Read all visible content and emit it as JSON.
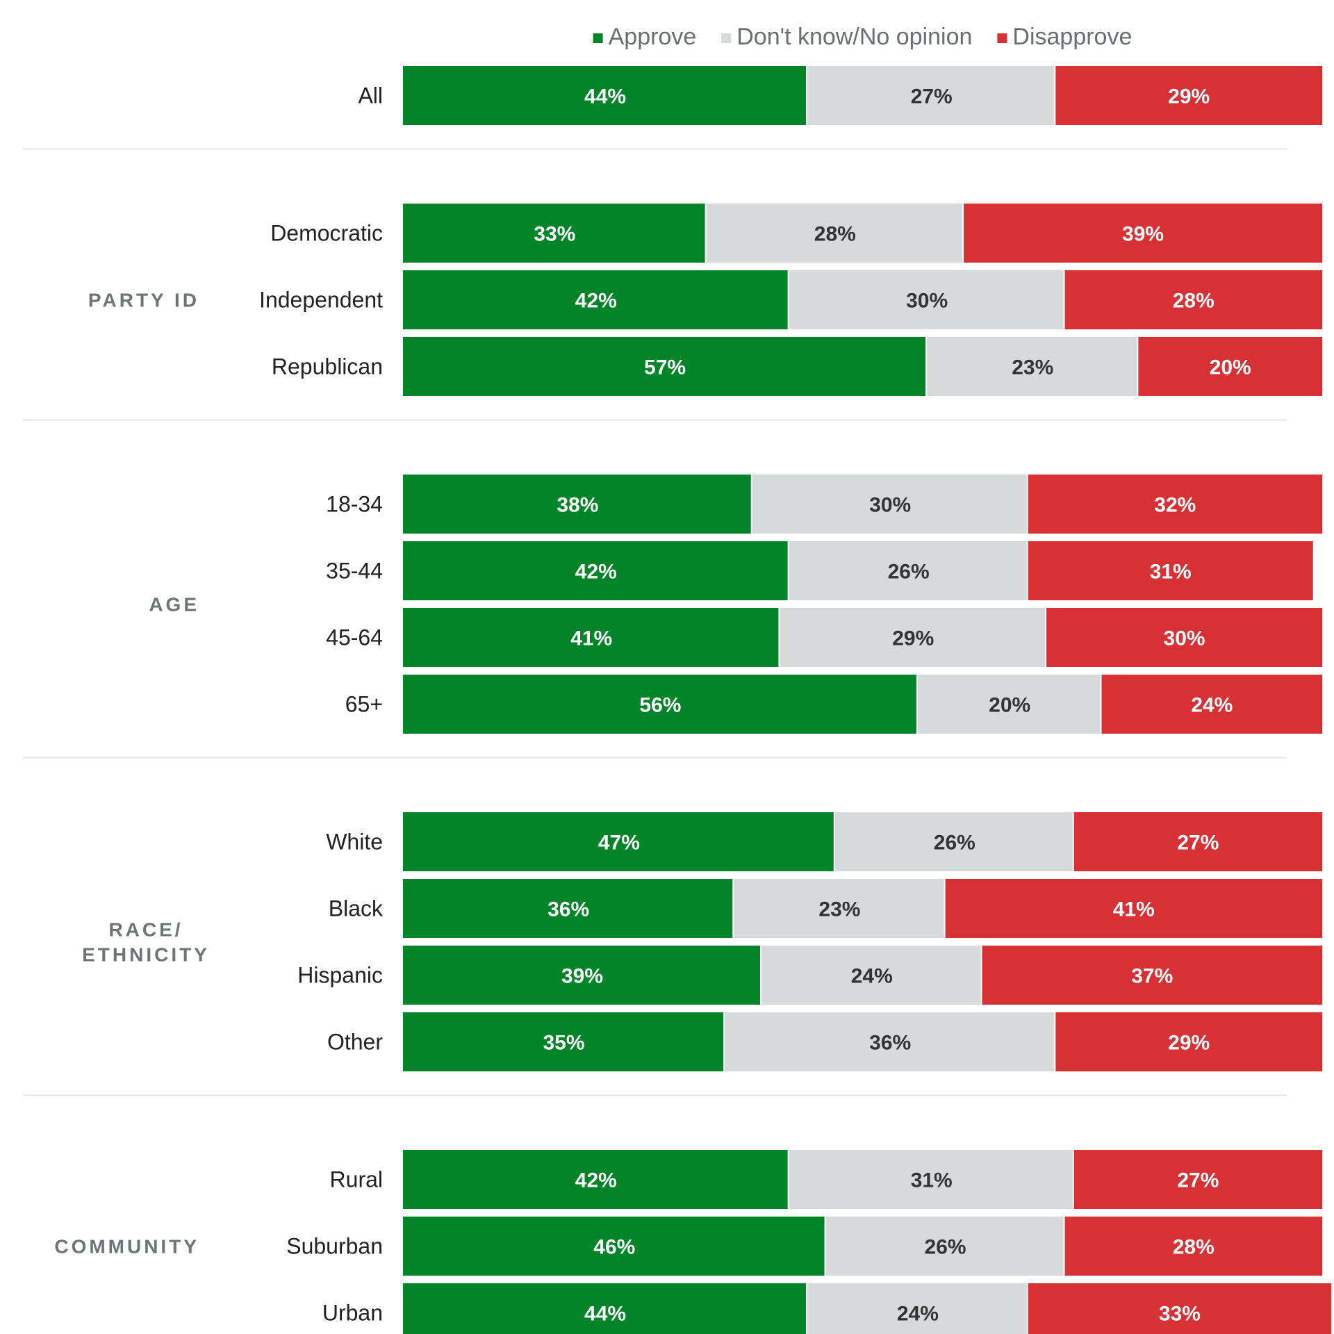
{
  "chart_data": {
    "type": "bar",
    "orientation": "horizontal",
    "stacked": true,
    "value_format": "percent",
    "xlim": [
      0,
      100
    ],
    "grid": false,
    "legend_position": "top",
    "series": [
      {
        "name": "Approve",
        "color": "#038428",
        "label_color": "#ffffff"
      },
      {
        "name": "Don't know/No opinion",
        "color": "#d7d9da",
        "label_color": "#333333"
      },
      {
        "name": "Disapprove",
        "color": "#d73035",
        "label_color": "#ffffff"
      }
    ],
    "groups": [
      {
        "label": "",
        "rows": [
          {
            "label": "All",
            "values": [
              44,
              27,
              29
            ]
          }
        ]
      },
      {
        "label": "PARTY ID",
        "rows": [
          {
            "label": "Democratic",
            "values": [
              33,
              28,
              39
            ]
          },
          {
            "label": "Independent",
            "values": [
              42,
              30,
              28
            ]
          },
          {
            "label": "Republican",
            "values": [
              57,
              23,
              20
            ]
          }
        ]
      },
      {
        "label": "AGE",
        "rows": [
          {
            "label": "18-34",
            "values": [
              38,
              30,
              32
            ]
          },
          {
            "label": "35-44",
            "values": [
              42,
              26,
              31
            ]
          },
          {
            "label": "45-64",
            "values": [
              41,
              29,
              30
            ]
          },
          {
            "label": "65+",
            "values": [
              56,
              20,
              24
            ]
          }
        ]
      },
      {
        "label": "RACE/ ETHNICITY",
        "label_lines": [
          "RACE/",
          "ETHNICITY"
        ],
        "rows": [
          {
            "label": "White",
            "values": [
              47,
              26,
              27
            ]
          },
          {
            "label": "Black",
            "values": [
              36,
              23,
              41
            ]
          },
          {
            "label": "Hispanic",
            "values": [
              39,
              24,
              37
            ]
          },
          {
            "label": "Other",
            "values": [
              35,
              36,
              29
            ]
          }
        ]
      },
      {
        "label": "COMMUNITY",
        "rows": [
          {
            "label": "Rural",
            "values": [
              42,
              31,
              27
            ]
          },
          {
            "label": "Suburban",
            "values": [
              46,
              26,
              28
            ]
          },
          {
            "label": "Urban",
            "values": [
              44,
              24,
              33
            ]
          }
        ]
      }
    ]
  }
}
